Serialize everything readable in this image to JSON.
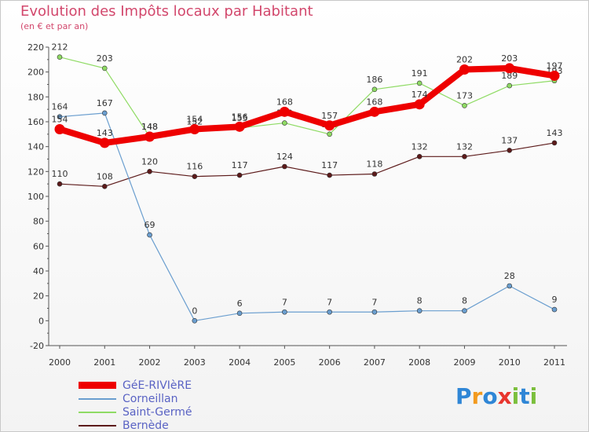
{
  "header": {
    "title": "Evolution des Impôts locaux par Habitant",
    "subtitle": "(en € et par an)"
  },
  "chart_data": {
    "type": "line",
    "title": "Evolution des Impôts locaux par Habitant",
    "subtitle": "(en € et par an)",
    "xlabel": "",
    "ylabel": "",
    "ylim": [
      -20,
      220
    ],
    "y_tick_step": 20,
    "grid": false,
    "legend_position": "bottom-left",
    "categories": [
      "2000",
      "2001",
      "2002",
      "2003",
      "2004",
      "2005",
      "2006",
      "2007",
      "2008",
      "2009",
      "2010",
      "2011"
    ],
    "y_ticks": [
      "-20",
      "0",
      "20",
      "40",
      "60",
      "80",
      "100",
      "120",
      "140",
      "160",
      "180",
      "200",
      "220"
    ],
    "series": [
      {
        "name": "Bernède",
        "color": "#5c1a1a",
        "emphasis": false,
        "values": [
          110,
          108,
          120,
          116,
          117,
          124,
          117,
          118,
          132,
          132,
          137,
          143
        ],
        "labels": [
          "110",
          "108",
          "120",
          "116",
          "117",
          "124",
          "117",
          "118",
          "132",
          "132",
          "137",
          "143"
        ]
      },
      {
        "name": "Corneillan",
        "color": "#6a9ecf",
        "emphasis": false,
        "values": [
          164,
          167,
          69,
          0,
          6,
          7,
          7,
          7,
          8,
          8,
          28,
          9
        ],
        "labels": [
          "164",
          "167",
          "69",
          "0",
          "6",
          "7",
          "7",
          "7",
          "8",
          "8",
          "28",
          "9"
        ]
      },
      {
        "name": "Saint-Germé",
        "color": "#8fdb64",
        "emphasis": false,
        "values": [
          212,
          203,
          148,
          152,
          155,
          159,
          150,
          186,
          191,
          173,
          189,
          193
        ],
        "labels": [
          "212",
          "203",
          "148",
          "152",
          "155",
          "159",
          "150",
          "186",
          "191",
          "173",
          "189",
          "193"
        ]
      },
      {
        "name": "GéE-RIVIèRE",
        "color": "#ee0000",
        "emphasis": true,
        "values": [
          154,
          143,
          148,
          154,
          156,
          168,
          157,
          168,
          174,
          202,
          203,
          197
        ],
        "labels": [
          "154",
          "143",
          "148",
          "154",
          "156",
          "168",
          "157",
          "168",
          "174",
          "202",
          "203",
          "197"
        ]
      }
    ]
  },
  "legend": {
    "items": [
      {
        "label": "GéE-RIVIèRE",
        "color": "#ee0000",
        "thick": true
      },
      {
        "label": "Corneillan",
        "color": "#6a9ecf",
        "thick": false
      },
      {
        "label": "Saint-Germé",
        "color": "#8fdb64",
        "thick": false
      },
      {
        "label": "Bernède",
        "color": "#5c1a1a",
        "thick": false
      }
    ]
  },
  "logo": {
    "letters": [
      "P",
      "r",
      "o",
      "x",
      "i",
      "t",
      "i"
    ],
    "colors": [
      "#2f86d6",
      "#f29a1f",
      "#2f86d6",
      "#e8352e",
      "#7bbf3c",
      "#2f86d6",
      "#7bbf3c"
    ]
  }
}
